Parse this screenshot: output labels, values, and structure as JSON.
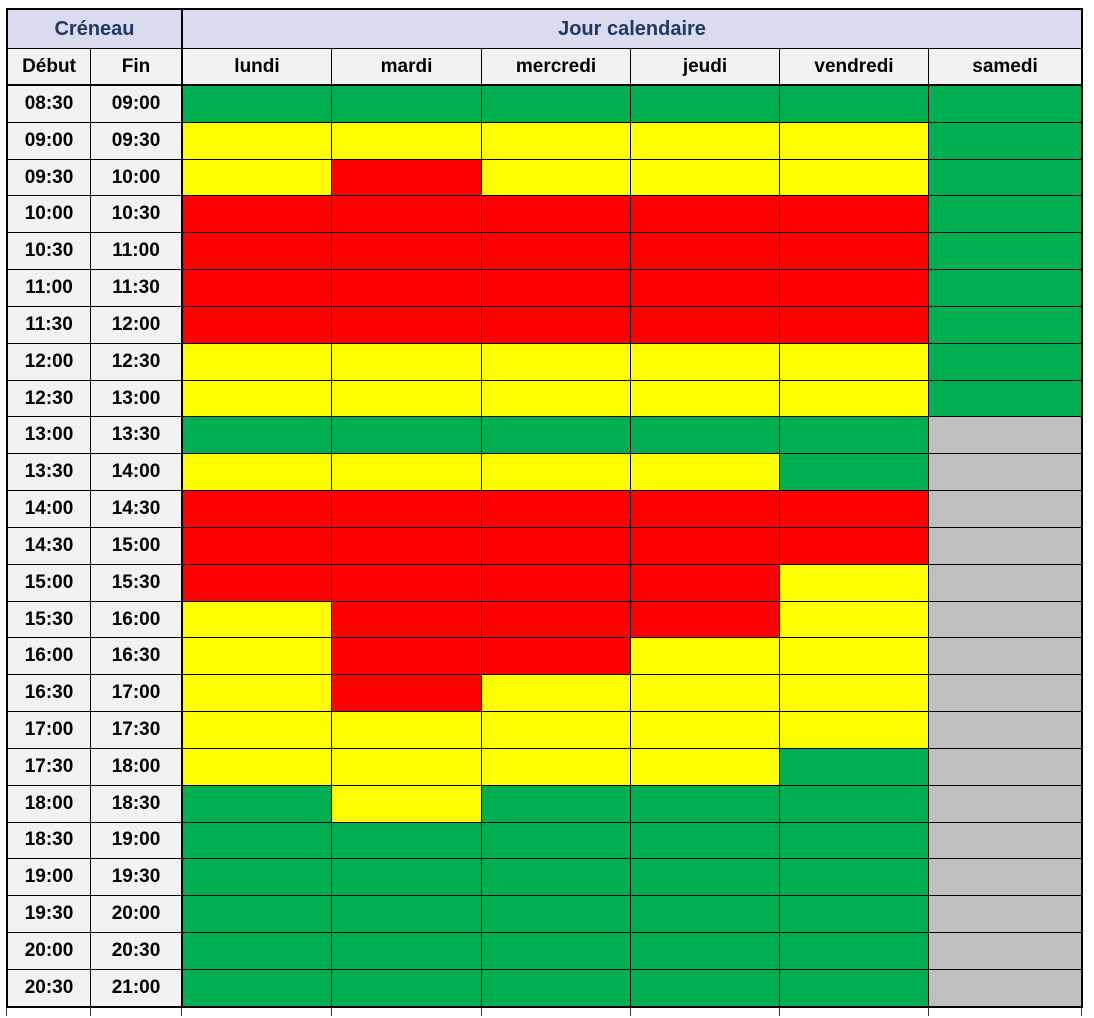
{
  "header": {
    "creneau": "Créneau",
    "jour_calendaire": "Jour calendaire",
    "debut": "Début",
    "fin": "Fin"
  },
  "chart_data": {
    "type": "heatmap",
    "columns": [
      "lundi",
      "mardi",
      "mercredi",
      "jeudi",
      "vendredi",
      "samedi"
    ],
    "row_label_columns": [
      "Début",
      "Fin"
    ],
    "color_map": {
      "G": "#00B050",
      "Y": "#FFFF00",
      "R": "#FF0000",
      "X": "#BFBFBF"
    },
    "color_names": {
      "G": "green",
      "Y": "yellow",
      "R": "red",
      "X": "gray"
    },
    "rows": [
      {
        "debut": "08:30",
        "fin": "09:00",
        "values": [
          "G",
          "G",
          "G",
          "G",
          "G",
          "G"
        ]
      },
      {
        "debut": "09:00",
        "fin": "09:30",
        "values": [
          "Y",
          "Y",
          "Y",
          "Y",
          "Y",
          "G"
        ]
      },
      {
        "debut": "09:30",
        "fin": "10:00",
        "values": [
          "Y",
          "R",
          "Y",
          "Y",
          "Y",
          "G"
        ]
      },
      {
        "debut": "10:00",
        "fin": "10:30",
        "values": [
          "R",
          "R",
          "R",
          "R",
          "R",
          "G"
        ]
      },
      {
        "debut": "10:30",
        "fin": "11:00",
        "values": [
          "R",
          "R",
          "R",
          "R",
          "R",
          "G"
        ]
      },
      {
        "debut": "11:00",
        "fin": "11:30",
        "values": [
          "R",
          "R",
          "R",
          "R",
          "R",
          "G"
        ]
      },
      {
        "debut": "11:30",
        "fin": "12:00",
        "values": [
          "R",
          "R",
          "R",
          "R",
          "R",
          "G"
        ]
      },
      {
        "debut": "12:00",
        "fin": "12:30",
        "values": [
          "Y",
          "Y",
          "Y",
          "Y",
          "Y",
          "G"
        ]
      },
      {
        "debut": "12:30",
        "fin": "13:00",
        "values": [
          "Y",
          "Y",
          "Y",
          "Y",
          "Y",
          "G"
        ]
      },
      {
        "debut": "13:00",
        "fin": "13:30",
        "values": [
          "G",
          "G",
          "G",
          "G",
          "G",
          "X"
        ]
      },
      {
        "debut": "13:30",
        "fin": "14:00",
        "values": [
          "Y",
          "Y",
          "Y",
          "Y",
          "G",
          "X"
        ]
      },
      {
        "debut": "14:00",
        "fin": "14:30",
        "values": [
          "R",
          "R",
          "R",
          "R",
          "R",
          "X"
        ]
      },
      {
        "debut": "14:30",
        "fin": "15:00",
        "values": [
          "R",
          "R",
          "R",
          "R",
          "R",
          "X"
        ]
      },
      {
        "debut": "15:00",
        "fin": "15:30",
        "values": [
          "R",
          "R",
          "R",
          "R",
          "Y",
          "X"
        ]
      },
      {
        "debut": "15:30",
        "fin": "16:00",
        "values": [
          "Y",
          "R",
          "R",
          "R",
          "Y",
          "X"
        ]
      },
      {
        "debut": "16:00",
        "fin": "16:30",
        "values": [
          "Y",
          "R",
          "R",
          "Y",
          "Y",
          "X"
        ]
      },
      {
        "debut": "16:30",
        "fin": "17:00",
        "values": [
          "Y",
          "R",
          "Y",
          "Y",
          "Y",
          "X"
        ]
      },
      {
        "debut": "17:00",
        "fin": "17:30",
        "values": [
          "Y",
          "Y",
          "Y",
          "Y",
          "Y",
          "X"
        ]
      },
      {
        "debut": "17:30",
        "fin": "18:00",
        "values": [
          "Y",
          "Y",
          "Y",
          "Y",
          "G",
          "X"
        ]
      },
      {
        "debut": "18:00",
        "fin": "18:30",
        "values": [
          "G",
          "Y",
          "G",
          "G",
          "G",
          "X"
        ]
      },
      {
        "debut": "18:30",
        "fin": "19:00",
        "values": [
          "G",
          "G",
          "G",
          "G",
          "G",
          "X"
        ]
      },
      {
        "debut": "19:00",
        "fin": "19:30",
        "values": [
          "G",
          "G",
          "G",
          "G",
          "G",
          "X"
        ]
      },
      {
        "debut": "19:30",
        "fin": "20:00",
        "values": [
          "G",
          "G",
          "G",
          "G",
          "G",
          "X"
        ]
      },
      {
        "debut": "20:00",
        "fin": "20:30",
        "values": [
          "G",
          "G",
          "G",
          "G",
          "G",
          "X"
        ]
      },
      {
        "debut": "20:30",
        "fin": "21:00",
        "values": [
          "G",
          "G",
          "G",
          "G",
          "G",
          "X"
        ]
      }
    ],
    "layout": {
      "grid_line_color": "#000000",
      "header_bg": "#DBDBF0",
      "header_text_color": "#1F3864",
      "label_bg": "#F2F2F2"
    }
  }
}
